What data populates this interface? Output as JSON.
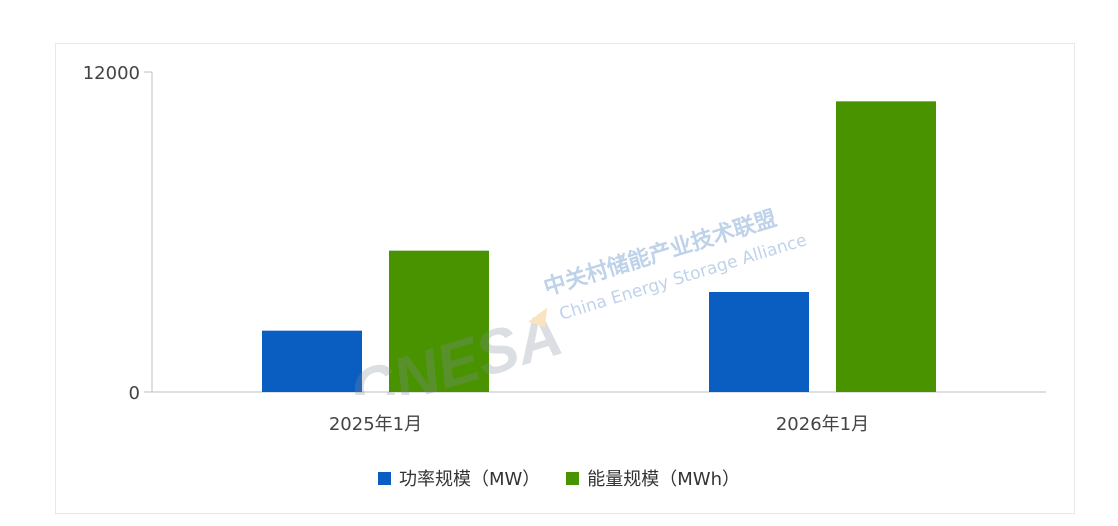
{
  "chart_data": {
    "type": "bar",
    "categories": [
      "2025年1月",
      "2026年1月"
    ],
    "series": [
      {
        "name": "功率规模（MW）",
        "values": [
          2300,
          3750
        ],
        "color": "#0a5ec2"
      },
      {
        "name": "能量规模（MWh）",
        "values": [
          5300,
          10900
        ],
        "color": "#4a9300"
      }
    ],
    "ylim": [
      0,
      12000
    ],
    "yticks": [
      "0",
      "12000"
    ],
    "title": "",
    "xlabel": "",
    "ylabel": "",
    "grid": false,
    "legend": "bottom"
  },
  "watermark": {
    "logo_text": "CNESA",
    "org_cn": "中关村储能产业技术联盟",
    "org_en": "China Energy Storage Alliance"
  }
}
